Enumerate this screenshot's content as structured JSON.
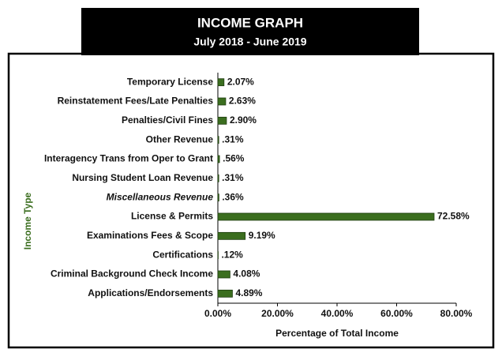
{
  "chart_data": {
    "type": "barh",
    "title": "INCOME GRAPH",
    "subtitle": "July 2018 - June 2019",
    "ylabel": "Income Type",
    "xlabel": "Percentage of Total Income",
    "categories": [
      "Temporary License",
      "Reinstatement Fees/Late Penalties",
      "Penalties/Civil Fines",
      "Other Revenue",
      "Interagency Trans from Oper to Grant",
      "Nursing Student Loan Revenue",
      "Miscellaneous Revenue",
      "License & Permits",
      "Examinations Fees & Scope",
      "Certifications",
      "Criminal Background Check Income",
      "Applications/Endorsements"
    ],
    "values": [
      2.07,
      2.63,
      2.9,
      0.31,
      0.56,
      0.31,
      0.36,
      72.58,
      9.19,
      0.12,
      4.08,
      4.89
    ],
    "value_labels": [
      "2.07%",
      "2.63%",
      "2.90%",
      ".31%",
      ".56%",
      ".31%",
      ".36%",
      "72.58%",
      "9.19%",
      ".12%",
      "4.08%",
      "4.89%"
    ],
    "color": "#3b6e1f",
    "xlim": [
      0,
      80
    ],
    "xticks": [
      {
        "value": 0,
        "label": "0.00%"
      },
      {
        "value": 20,
        "label": "20.00%"
      },
      {
        "value": 40,
        "label": "40.00%"
      },
      {
        "value": 60,
        "label": "60.00%"
      },
      {
        "value": 80,
        "label": "80.00%"
      }
    ]
  }
}
